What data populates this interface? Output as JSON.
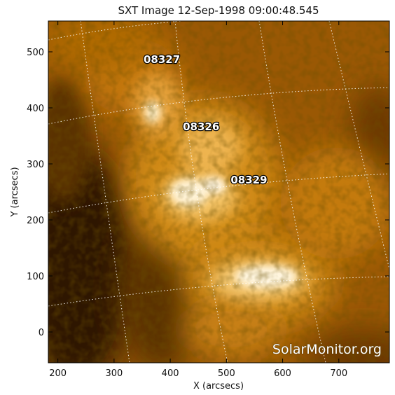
{
  "title": "SXT Image 12-Sep-1998 09:00:48.545",
  "x_axis": {
    "label": "X (arcsecs)",
    "range": [
      183,
      790
    ],
    "ticks": [
      "200",
      "300",
      "400",
      "500",
      "600",
      "700"
    ]
  },
  "y_axis": {
    "label": "Y (arcsecs)",
    "range": [
      -55,
      555
    ],
    "ticks": [
      "0",
      "100",
      "200",
      "300",
      "400",
      "500"
    ]
  },
  "active_regions": [
    {
      "id": "08327",
      "x": 385,
      "y": 480
    },
    {
      "id": "08326",
      "x": 455,
      "y": 360
    },
    {
      "id": "08329",
      "x": 540,
      "y": 265
    }
  ],
  "watermark": "SolarMonitor.org",
  "colors": {
    "sun_dark": "#3a1d00",
    "sun_mid": "#b86a05",
    "sun_bright": "#ffd68a",
    "core": "#fff6dc"
  }
}
